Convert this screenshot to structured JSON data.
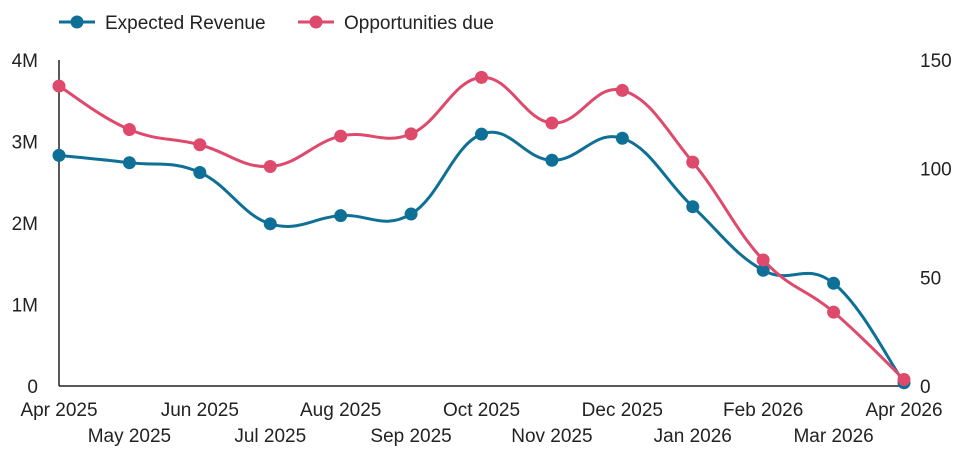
{
  "chart_data": {
    "type": "line",
    "title": "",
    "x": [
      "Apr 2025",
      "May 2025",
      "Jun 2025",
      "Jul 2025",
      "Aug 2025",
      "Sep 2025",
      "Oct 2025",
      "Nov 2025",
      "Dec 2025",
      "Jan 2026",
      "Feb 2026",
      "Mar 2026",
      "Apr 2026"
    ],
    "series": [
      {
        "name": "Expected Revenue",
        "axis": "left",
        "color": "#0e7096",
        "values": [
          2830000,
          2740000,
          2620000,
          1990000,
          2090000,
          2110000,
          3090000,
          2770000,
          3040000,
          2200000,
          1420000,
          1260000,
          40000
        ]
      },
      {
        "name": "Opportunities due",
        "axis": "right",
        "color": "#de4a6c",
        "values": [
          138,
          118,
          111,
          101,
          115,
          116,
          142,
          121,
          136,
          103,
          58,
          34,
          3
        ]
      }
    ],
    "y_left": {
      "ylim": [
        0,
        4000000
      ],
      "ticks": [
        0,
        1000000,
        2000000,
        3000000,
        4000000
      ],
      "tick_labels": [
        "0",
        "1M",
        "2M",
        "3M",
        "4M"
      ]
    },
    "y_right": {
      "ylim": [
        0,
        150
      ],
      "ticks": [
        0,
        50,
        100,
        150
      ],
      "tick_labels": [
        "0",
        "50",
        "100",
        "150"
      ]
    },
    "grid": false,
    "legend": "top-left",
    "smooth": true
  }
}
